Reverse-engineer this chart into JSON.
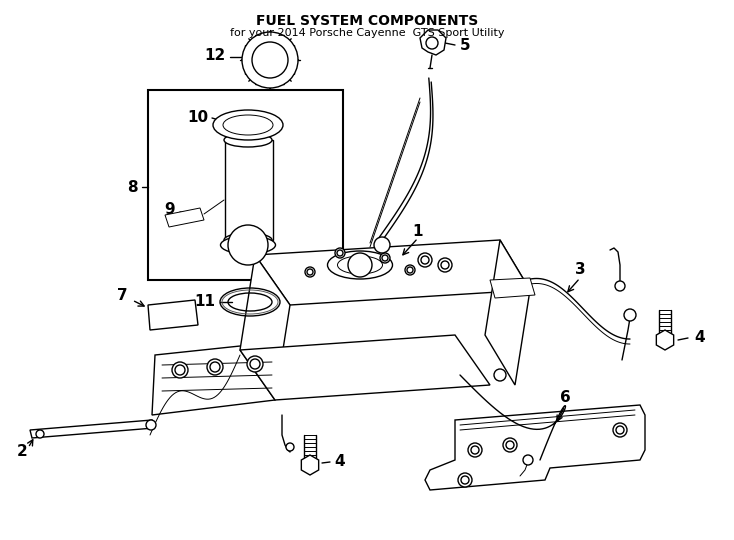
{
  "title": "FUEL SYSTEM COMPONENTS",
  "subtitle": "for your 2014 Porsche Cayenne  GTS Sport Utility",
  "bg": "#ffffff",
  "lc": "#000000",
  "fig_w": 7.34,
  "fig_h": 5.4,
  "dpi": 100,
  "label_fs": 11,
  "subtitle_fs": 8,
  "title_fs": 10,
  "lw": 1.0,
  "lw_thick": 1.5,
  "lw_thin": 0.7
}
